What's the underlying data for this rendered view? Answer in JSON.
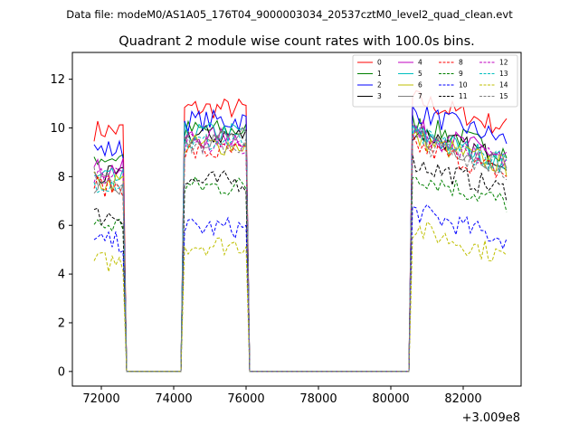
{
  "header": {
    "data_file": "Data file: modeM0/AS1A05_176T04_9000003034_20537cztM0_level2_quad_clean.evt"
  },
  "chart_data": {
    "type": "line",
    "title": "Quadrant 2 module wise count rates with 100.0s bins.",
    "xlabel": "",
    "ylabel": "",
    "offset_label": "+3.009e8",
    "xlim": [
      71200,
      83600
    ],
    "ylim": [
      -0.6,
      13.1
    ],
    "x_ticks": [
      72000,
      74000,
      76000,
      78000,
      80000,
      82000
    ],
    "x_tick_labels": [
      "72000",
      "74000",
      "76000",
      "78000",
      "80000",
      "82000"
    ],
    "y_ticks": [
      0,
      2,
      4,
      6,
      8,
      10,
      12
    ],
    "y_tick_labels": [
      "0",
      "2",
      "4",
      "6",
      "8",
      "10",
      "12"
    ],
    "grid": false,
    "legend_position": "top-right",
    "segments": [
      {
        "start": 71800,
        "end": 72600
      },
      {
        "start": 74300,
        "end": 76000
      },
      {
        "start": 80600,
        "end": 83200
      }
    ],
    "series": [
      {
        "name": "0",
        "color": "#ff0000",
        "dash": "solid",
        "levels": [
          9.9,
          10.8,
          10.4
        ]
      },
      {
        "name": "1",
        "color": "#008000",
        "dash": "solid",
        "levels": [
          8.8,
          9.9,
          9.4
        ]
      },
      {
        "name": "2",
        "color": "#0000ff",
        "dash": "solid",
        "levels": [
          9.1,
          10.3,
          9.9
        ]
      },
      {
        "name": "3",
        "color": "#000000",
        "dash": "solid",
        "levels": [
          8.0,
          9.7,
          9.1
        ]
      },
      {
        "name": "4",
        "color": "#c000c0",
        "dash": "solid",
        "levels": [
          8.3,
          9.6,
          9.2
        ]
      },
      {
        "name": "5",
        "color": "#00bfbf",
        "dash": "solid",
        "levels": [
          7.9,
          9.8,
          9.0
        ]
      },
      {
        "name": "6",
        "color": "#bfbf00",
        "dash": "solid",
        "levels": [
          7.8,
          9.3,
          8.8
        ]
      },
      {
        "name": "7",
        "color": "#808080",
        "dash": "solid",
        "levels": [
          7.7,
          9.6,
          8.9
        ]
      },
      {
        "name": "8",
        "color": "#ff0000",
        "dash": "dashed",
        "levels": [
          7.6,
          9.0,
          8.5
        ]
      },
      {
        "name": "9",
        "color": "#008000",
        "dash": "dashed",
        "levels": [
          6.0,
          7.6,
          7.3
        ]
      },
      {
        "name": "10",
        "color": "#0000ff",
        "dash": "dashed",
        "levels": [
          5.3,
          5.9,
          5.8
        ]
      },
      {
        "name": "11",
        "color": "#000000",
        "dash": "dashed",
        "levels": [
          6.4,
          7.8,
          7.8
        ]
      },
      {
        "name": "12",
        "color": "#c000c0",
        "dash": "dashed",
        "levels": [
          8.1,
          9.3,
          9.0
        ]
      },
      {
        "name": "13",
        "color": "#00bfbf",
        "dash": "dashed",
        "levels": [
          7.8,
          9.4,
          8.9
        ]
      },
      {
        "name": "14",
        "color": "#bfbf00",
        "dash": "dashed",
        "levels": [
          4.5,
          5.2,
          5.1
        ]
      },
      {
        "name": "15",
        "color": "#808080",
        "dash": "dashed",
        "levels": [
          8.0,
          9.3,
          8.7
        ]
      }
    ]
  }
}
